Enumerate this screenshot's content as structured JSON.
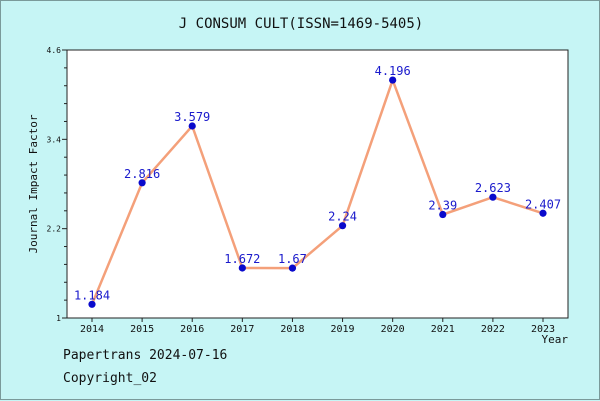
{
  "footer": {
    "source": "Papertrans 2024-07-16",
    "copyright": "Copyright_02"
  },
  "colors": {
    "background": "#c6f5f5",
    "plot_background": "#ffffff",
    "line": "#f4a07a",
    "marker": "#0a0acc",
    "label": "#1a1acc"
  },
  "chart_data": {
    "type": "line",
    "title": "J CONSUM CULT(ISSN=1469-5405)",
    "xlabel": "Year",
    "ylabel": "Journal Impact Factor",
    "categories": [
      "2014",
      "2015",
      "2016",
      "2017",
      "2018",
      "2019",
      "2020",
      "2021",
      "2022",
      "2023"
    ],
    "series": [
      {
        "values": [
          1.184,
          2.816,
          3.579,
          1.672,
          1.67,
          2.24,
          4.196,
          2.39,
          2.623,
          2.407
        ],
        "labels": [
          "1.184",
          "2.816",
          "3.579",
          "1.672",
          "1.67",
          "2.24",
          "4.196",
          "2.39",
          "2.623",
          "2.407"
        ]
      }
    ],
    "yticks": [
      "1",
      "2.2",
      "3.4",
      "4.6"
    ],
    "ylim": [
      1,
      4.6
    ],
    "grid": false,
    "legend": "none"
  }
}
